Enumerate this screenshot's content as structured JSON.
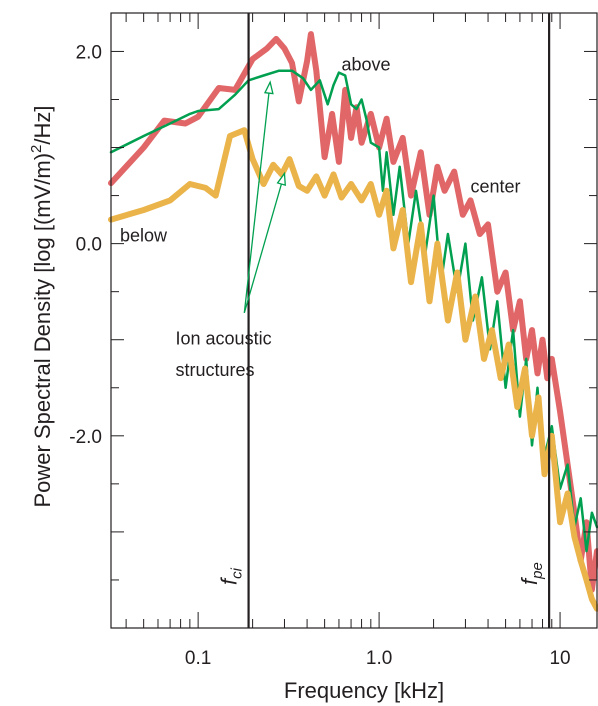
{
  "chart_data": {
    "type": "line",
    "xlabel": "Frequency [kHz]",
    "ylabel_parts": [
      "Power Spectral Density  [log [(mV/m)",
      "2",
      "/Hz]"
    ],
    "x_scale": "log",
    "xlim": [
      0.033,
      16
    ],
    "ylim": [
      -4,
      2.4
    ],
    "x_ticks": [
      0.1,
      1.0,
      10
    ],
    "x_tick_labels": [
      "0.1",
      "1.0",
      "10"
    ],
    "y_ticks": [
      2.0,
      0.0,
      -2.0
    ],
    "y_tick_labels": [
      "2.0",
      "0.0",
      "-2.0"
    ],
    "grid": false,
    "series": [
      {
        "name": "above",
        "color": "#e06668",
        "stroke_width": 6,
        "points": [
          [
            0.033,
            0.63
          ],
          [
            0.05,
            1.0
          ],
          [
            0.065,
            1.28
          ],
          [
            0.085,
            1.25
          ],
          [
            0.1,
            1.32
          ],
          [
            0.13,
            1.62
          ],
          [
            0.16,
            1.6
          ],
          [
            0.2,
            1.92
          ],
          [
            0.24,
            2.03
          ],
          [
            0.27,
            2.13
          ],
          [
            0.3,
            2.03
          ],
          [
            0.33,
            1.88
          ],
          [
            0.36,
            1.48
          ],
          [
            0.4,
            1.9
          ],
          [
            0.42,
            2.18
          ],
          [
            0.45,
            1.8
          ],
          [
            0.5,
            0.9
          ],
          [
            0.55,
            1.35
          ],
          [
            0.6,
            0.85
          ],
          [
            0.65,
            1.6
          ],
          [
            0.7,
            1.1
          ],
          [
            0.75,
            1.42
          ],
          [
            0.8,
            1.05
          ],
          [
            0.9,
            1.35
          ],
          [
            1.0,
            1.0
          ],
          [
            1.1,
            1.3
          ],
          [
            1.2,
            0.85
          ],
          [
            1.35,
            1.1
          ],
          [
            1.5,
            0.5
          ],
          [
            1.7,
            0.95
          ],
          [
            1.9,
            0.3
          ],
          [
            2.1,
            0.8
          ],
          [
            2.3,
            0.55
          ],
          [
            2.6,
            0.75
          ],
          [
            2.9,
            0.3
          ],
          [
            3.2,
            0.45
          ],
          [
            3.6,
            0.1
          ],
          [
            4.0,
            0.2
          ],
          [
            4.5,
            -0.5
          ],
          [
            5.0,
            -0.3
          ],
          [
            5.5,
            -0.9
          ],
          [
            6.0,
            -0.6
          ],
          [
            6.5,
            -1.2
          ],
          [
            7.0,
            -0.9
          ],
          [
            7.5,
            -1.35
          ],
          [
            8.0,
            -1.0
          ],
          [
            8.5,
            -1.4
          ],
          [
            9.0,
            -1.2
          ],
          [
            10,
            -1.75
          ],
          [
            11,
            -2.3
          ],
          [
            12,
            -2.8
          ],
          [
            13,
            -3.3
          ],
          [
            14,
            -2.9
          ],
          [
            15,
            -3.6
          ],
          [
            16,
            -3.2
          ]
        ]
      },
      {
        "name": "center",
        "color": "#00a050",
        "stroke_width": 2.5,
        "points": [
          [
            0.033,
            0.95
          ],
          [
            0.05,
            1.12
          ],
          [
            0.07,
            1.25
          ],
          [
            0.09,
            1.35
          ],
          [
            0.1,
            1.38
          ],
          [
            0.13,
            1.4
          ],
          [
            0.16,
            1.55
          ],
          [
            0.19,
            1.7
          ],
          [
            0.23,
            1.75
          ],
          [
            0.28,
            1.8
          ],
          [
            0.33,
            1.8
          ],
          [
            0.38,
            1.72
          ],
          [
            0.42,
            1.6
          ],
          [
            0.47,
            1.7
          ],
          [
            0.52,
            1.45
          ],
          [
            0.56,
            1.65
          ],
          [
            0.6,
            1.78
          ],
          [
            0.65,
            1.75
          ],
          [
            0.7,
            1.45
          ],
          [
            0.75,
            1.4
          ],
          [
            0.8,
            1.5
          ],
          [
            0.85,
            1.3
          ],
          [
            0.9,
            1.05
          ],
          [
            1.0,
            1.0
          ],
          [
            1.05,
            0.55
          ],
          [
            1.1,
            0.95
          ],
          [
            1.2,
            0.3
          ],
          [
            1.3,
            0.8
          ],
          [
            1.45,
            0.0
          ],
          [
            1.6,
            0.55
          ],
          [
            1.8,
            -0.1
          ],
          [
            2.0,
            0.5
          ],
          [
            2.2,
            -0.4
          ],
          [
            2.4,
            0.1
          ],
          [
            2.7,
            -0.5
          ],
          [
            3.0,
            0.0
          ],
          [
            3.3,
            -0.8
          ],
          [
            3.7,
            -0.35
          ],
          [
            4.1,
            -1.1
          ],
          [
            4.5,
            -0.6
          ],
          [
            5.0,
            -1.5
          ],
          [
            5.5,
            -0.9
          ],
          [
            6.0,
            -1.8
          ],
          [
            6.5,
            -1.2
          ],
          [
            7.0,
            -2.1
          ],
          [
            7.5,
            -1.5
          ],
          [
            8.0,
            -2.3
          ],
          [
            9.0,
            -1.9
          ],
          [
            10,
            -2.55
          ],
          [
            11,
            -2.3
          ],
          [
            12,
            -2.95
          ],
          [
            13,
            -2.65
          ],
          [
            14,
            -3.2
          ],
          [
            15,
            -2.8
          ],
          [
            16,
            -2.95
          ]
        ]
      },
      {
        "name": "below",
        "color": "#eab44a",
        "stroke_width": 6,
        "points": [
          [
            0.033,
            0.25
          ],
          [
            0.05,
            0.35
          ],
          [
            0.07,
            0.45
          ],
          [
            0.09,
            0.62
          ],
          [
            0.11,
            0.58
          ],
          [
            0.125,
            0.5
          ],
          [
            0.15,
            1.12
          ],
          [
            0.18,
            1.18
          ],
          [
            0.2,
            0.88
          ],
          [
            0.23,
            0.62
          ],
          [
            0.26,
            0.82
          ],
          [
            0.29,
            0.72
          ],
          [
            0.32,
            0.88
          ],
          [
            0.36,
            0.6
          ],
          [
            0.4,
            0.55
          ],
          [
            0.45,
            0.7
          ],
          [
            0.5,
            0.5
          ],
          [
            0.56,
            0.72
          ],
          [
            0.62,
            0.48
          ],
          [
            0.7,
            0.62
          ],
          [
            0.8,
            0.45
          ],
          [
            0.9,
            0.62
          ],
          [
            1.0,
            0.3
          ],
          [
            1.1,
            0.55
          ],
          [
            1.2,
            -0.05
          ],
          [
            1.35,
            0.35
          ],
          [
            1.5,
            -0.4
          ],
          [
            1.7,
            0.2
          ],
          [
            1.9,
            -0.6
          ],
          [
            2.1,
            0.0
          ],
          [
            2.4,
            -0.8
          ],
          [
            2.7,
            -0.3
          ],
          [
            3.0,
            -1.0
          ],
          [
            3.4,
            -0.55
          ],
          [
            3.8,
            -1.2
          ],
          [
            4.2,
            -0.9
          ],
          [
            4.7,
            -1.4
          ],
          [
            5.2,
            -1.05
          ],
          [
            5.8,
            -1.7
          ],
          [
            6.4,
            -1.3
          ],
          [
            7.0,
            -2.0
          ],
          [
            7.6,
            -1.6
          ],
          [
            8.2,
            -2.4
          ],
          [
            9.0,
            -2.0
          ],
          [
            10,
            -2.9
          ],
          [
            11,
            -2.6
          ],
          [
            12,
            -3.05
          ],
          [
            13,
            -3.3
          ],
          [
            14,
            -3.5
          ],
          [
            15,
            -3.7
          ],
          [
            16,
            -3.8
          ]
        ]
      }
    ],
    "vertical_markers": [
      {
        "x": 0.19,
        "label_main": "f",
        "label_sub": "ci"
      },
      {
        "x": 8.7,
        "label_main": "f",
        "label_sub": "pe"
      }
    ],
    "annotations": [
      {
        "text": "above",
        "x": 0.62,
        "y": 1.8
      },
      {
        "text": "center",
        "x": 3.2,
        "y": 0.53
      },
      {
        "text": "below",
        "x": 0.037,
        "y": 0.02
      },
      {
        "text": "Ion acoustic",
        "x": 0.075,
        "y": -1.05
      },
      {
        "text": "structures",
        "x": 0.075,
        "y": -1.38
      }
    ],
    "arrows": [
      {
        "from": [
          0.18,
          -0.72
        ],
        "to": [
          0.25,
          1.68
        ]
      },
      {
        "from": [
          0.18,
          -0.72
        ],
        "to": [
          0.3,
          0.73
        ]
      }
    ]
  }
}
